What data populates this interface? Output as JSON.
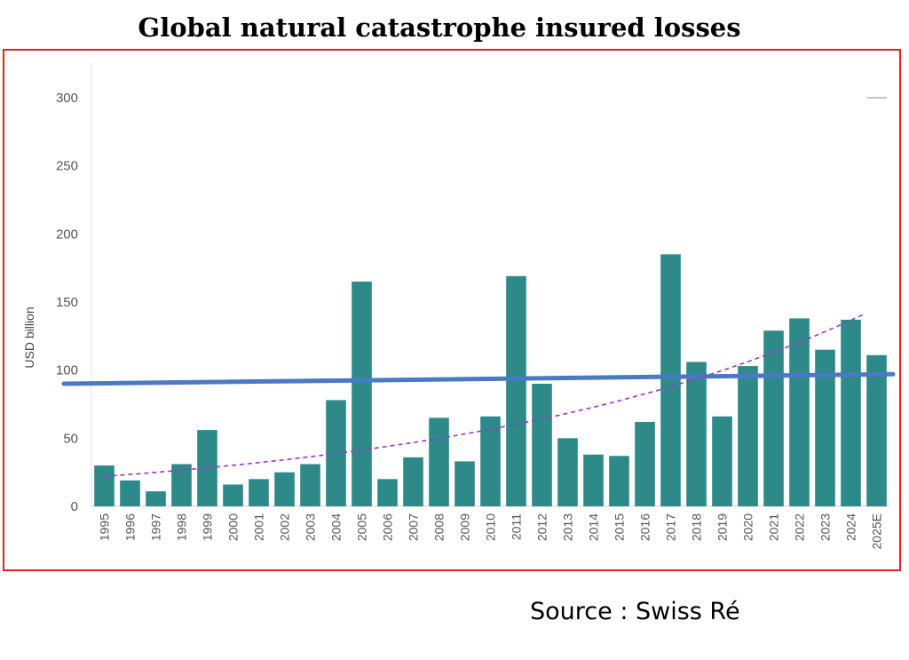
{
  "title": "Global natural catastrophe insured losses",
  "source": "Source : Swiss Ré",
  "colors": {
    "bar": "#2e8a89",
    "linear_trend": "#4a7ac4",
    "exp_trend": "#9b35c9",
    "frame": "#e8201c"
  },
  "chart_data": {
    "type": "bar",
    "title": "Global natural catastrophe insured losses",
    "ylabel": "USD billion",
    "xlabel": "",
    "ylim": [
      0,
      300
    ],
    "yticks": [
      0,
      50,
      100,
      150,
      200,
      250,
      300
    ],
    "grid": false,
    "categories": [
      "1995",
      "1996",
      "1997",
      "1998",
      "1999",
      "2000",
      "2001",
      "2002",
      "2003",
      "2004",
      "2005",
      "2006",
      "2007",
      "2008",
      "2009",
      "2010",
      "2011",
      "2012",
      "2013",
      "2014",
      "2015",
      "2016",
      "2017",
      "2018",
      "2019",
      "2020",
      "2021",
      "2022",
      "2023",
      "2024",
      "2025E"
    ],
    "values": [
      30,
      19,
      11,
      31,
      56,
      16,
      20,
      25,
      31,
      78,
      165,
      20,
      36,
      65,
      33,
      66,
      169,
      90,
      50,
      38,
      37,
      62,
      185,
      106,
      66,
      103,
      129,
      138,
      115,
      137,
      111
    ],
    "trendlines": [
      {
        "kind": "linear",
        "start": 90,
        "end": 97
      },
      {
        "kind": "exponential",
        "start": 22,
        "end": 141
      }
    ]
  }
}
